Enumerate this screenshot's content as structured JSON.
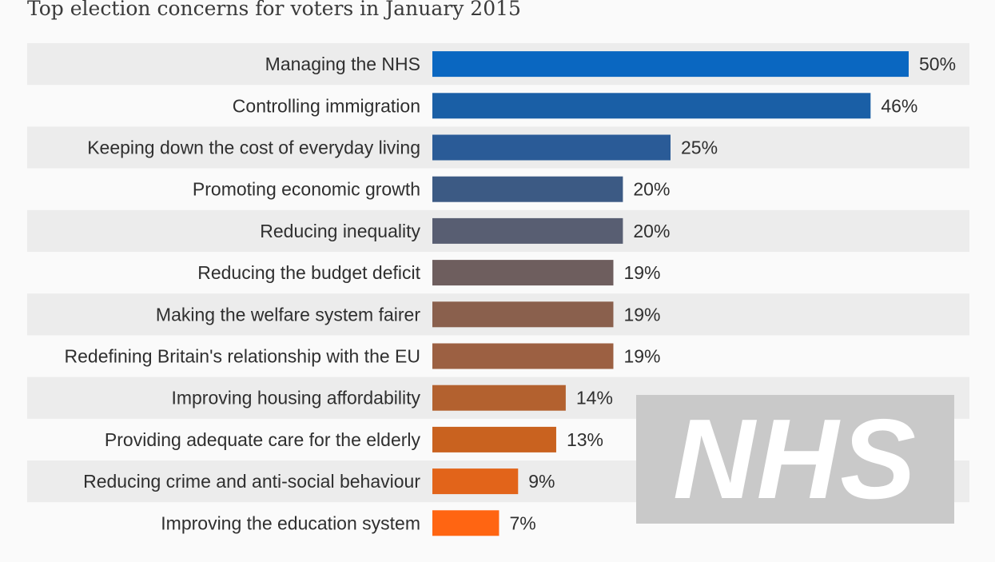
{
  "chart_data": {
    "type": "bar",
    "orientation": "horizontal",
    "subtitle": "Top election concerns for voters in January 2015",
    "categories": [
      "Managing the NHS",
      "Controlling immigration",
      "Keeping down the cost of everyday living",
      "Promoting economic growth",
      "Reducing inequality",
      "Reducing the budget deficit",
      "Making the welfare system fairer",
      "Redefining Britain's relationship with the EU",
      "Improving housing affordability",
      "Providing adequate care for the elderly",
      "Reducing crime and anti-social behaviour",
      "Improving the education system"
    ],
    "values": [
      50,
      46,
      25,
      20,
      20,
      19,
      19,
      19,
      14,
      13,
      9,
      7
    ],
    "value_labels": [
      "50%",
      "46%",
      "25%",
      "20%",
      "20%",
      "19%",
      "19%",
      "19%",
      "14%",
      "13%",
      "9%",
      "7%"
    ],
    "bar_colors": [
      "#0a67c1",
      "#1a5fa6",
      "#2a5b97",
      "#3c5a84",
      "#585e72",
      "#6e5e5e",
      "#8a604d",
      "#9c6042",
      "#b3612f",
      "#c9621f",
      "#e2641a",
      "#ff6512"
    ],
    "row_background": "#ececec",
    "xlim": [
      0,
      50
    ],
    "grid": false,
    "legend": "none"
  },
  "watermark": {
    "text": "NHS"
  }
}
